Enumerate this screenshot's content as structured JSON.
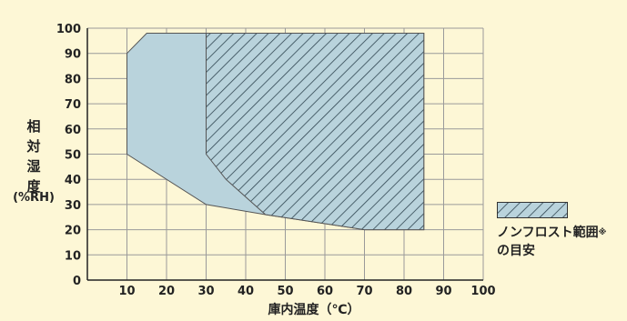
{
  "chart_data": {
    "type": "area",
    "xlabel": "庫内温度（℃）",
    "ylabel": [
      "相",
      "対",
      "湿",
      "度"
    ],
    "yunit": "(%RH)",
    "xlim": [
      0,
      100
    ],
    "ylim": [
      0,
      100
    ],
    "xticks": [
      10,
      20,
      30,
      40,
      50,
      60,
      70,
      80,
      90,
      100
    ],
    "yticks": [
      0,
      10,
      20,
      30,
      40,
      50,
      60,
      70,
      80,
      90,
      100
    ],
    "grid": true,
    "series": [
      {
        "fill": "#b9d3dc",
        "points": [
          [
            10,
            90
          ],
          [
            15,
            98
          ],
          [
            85,
            98
          ],
          [
            85,
            20
          ],
          [
            70,
            20
          ],
          [
            45,
            26
          ],
          [
            30,
            30
          ],
          [
            10,
            50
          ]
        ]
      },
      {
        "name": "ノンフロスト範囲",
        "name_mark": "※",
        "name_line2": "の目安",
        "fill": "#b9d3dc",
        "hatched": true,
        "points": [
          [
            30,
            98
          ],
          [
            85,
            98
          ],
          [
            85,
            20
          ],
          [
            70,
            20
          ],
          [
            45,
            26
          ],
          [
            35,
            40
          ],
          [
            30,
            50
          ]
        ]
      }
    ],
    "colors": {
      "background": "#fdf7d6",
      "grid": "#9a9a9a",
      "axis": "#222222",
      "hatch": "#2f4550",
      "outline": "#555555"
    }
  }
}
